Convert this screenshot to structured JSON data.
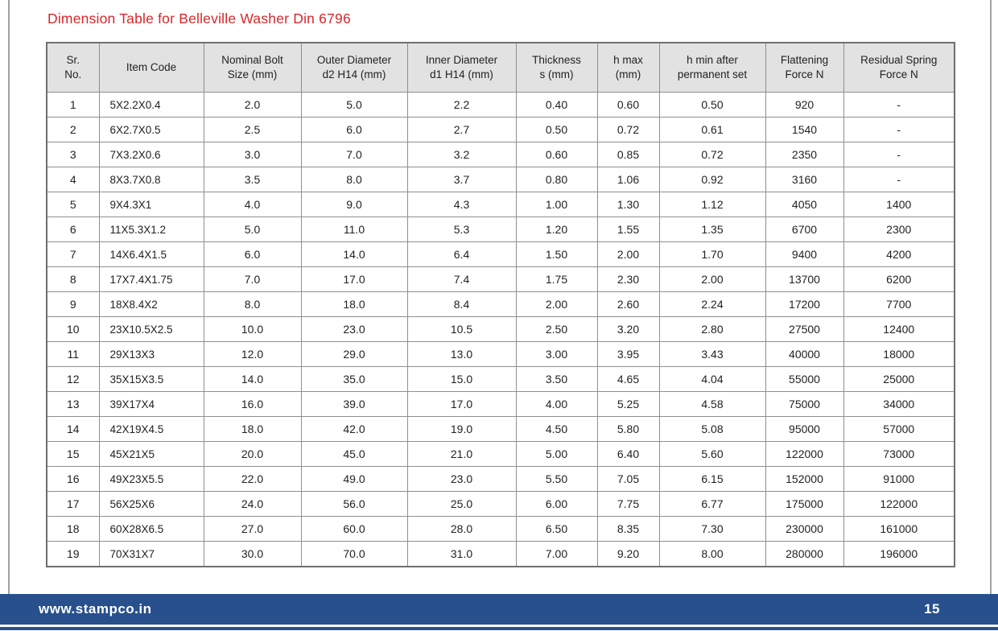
{
  "page": {
    "title": "Dimension Table for Belleville Washer Din 6796",
    "title_color": "#d9262a"
  },
  "table": {
    "column_keys": [
      "sr_no",
      "item_code",
      "nominal_bolt_size",
      "outer_diameter_d2",
      "inner_diameter_d1",
      "thickness_s",
      "h_max",
      "h_min_after_set",
      "flattening_force",
      "residual_spring_force"
    ],
    "columns": [
      "Sr.\nNo.",
      "Item Code",
      "Nominal Bolt\nSize (mm)",
      "Outer Diameter\nd2 H14 (mm)",
      "Inner Diameter\nd1 H14 (mm)",
      "Thickness\ns (mm)",
      "h max\n(mm)",
      "h min after\npermanent set",
      "Flattening\nForce N",
      "Residual Spring\nForce N"
    ],
    "rows": [
      [
        "1",
        "5X2.2X0.4",
        "2.0",
        "5.0",
        "2.2",
        "0.40",
        "0.60",
        "0.50",
        "920",
        "-"
      ],
      [
        "2",
        "6X2.7X0.5",
        "2.5",
        "6.0",
        "2.7",
        "0.50",
        "0.72",
        "0.61",
        "1540",
        "-"
      ],
      [
        "3",
        "7X3.2X0.6",
        "3.0",
        "7.0",
        "3.2",
        "0.60",
        "0.85",
        "0.72",
        "2350",
        "-"
      ],
      [
        "4",
        "8X3.7X0.8",
        "3.5",
        "8.0",
        "3.7",
        "0.80",
        "1.06",
        "0.92",
        "3160",
        "-"
      ],
      [
        "5",
        "9X4.3X1",
        "4.0",
        "9.0",
        "4.3",
        "1.00",
        "1.30",
        "1.12",
        "4050",
        "1400"
      ],
      [
        "6",
        "11X5.3X1.2",
        "5.0",
        "11.0",
        "5.3",
        "1.20",
        "1.55",
        "1.35",
        "6700",
        "2300"
      ],
      [
        "7",
        "14X6.4X1.5",
        "6.0",
        "14.0",
        "6.4",
        "1.50",
        "2.00",
        "1.70",
        "9400",
        "4200"
      ],
      [
        "8",
        "17X7.4X1.75",
        "7.0",
        "17.0",
        "7.4",
        "1.75",
        "2.30",
        "2.00",
        "13700",
        "6200"
      ],
      [
        "9",
        "18X8.4X2",
        "8.0",
        "18.0",
        "8.4",
        "2.00",
        "2.60",
        "2.24",
        "17200",
        "7700"
      ],
      [
        "10",
        "23X10.5X2.5",
        "10.0",
        "23.0",
        "10.5",
        "2.50",
        "3.20",
        "2.80",
        "27500",
        "12400"
      ],
      [
        "11",
        "29X13X3",
        "12.0",
        "29.0",
        "13.0",
        "3.00",
        "3.95",
        "3.43",
        "40000",
        "18000"
      ],
      [
        "12",
        "35X15X3.5",
        "14.0",
        "35.0",
        "15.0",
        "3.50",
        "4.65",
        "4.04",
        "55000",
        "25000"
      ],
      [
        "13",
        "39X17X4",
        "16.0",
        "39.0",
        "17.0",
        "4.00",
        "5.25",
        "4.58",
        "75000",
        "34000"
      ],
      [
        "14",
        "42X19X4.5",
        "18.0",
        "42.0",
        "19.0",
        "4.50",
        "5.80",
        "5.08",
        "95000",
        "57000"
      ],
      [
        "15",
        "45X21X5",
        "20.0",
        "45.0",
        "21.0",
        "5.00",
        "6.40",
        "5.60",
        "122000",
        "73000"
      ],
      [
        "16",
        "49X23X5.5",
        "22.0",
        "49.0",
        "23.0",
        "5.50",
        "7.05",
        "6.15",
        "152000",
        "91000"
      ],
      [
        "17",
        "56X25X6",
        "24.0",
        "56.0",
        "25.0",
        "6.00",
        "7.75",
        "6.77",
        "175000",
        "122000"
      ],
      [
        "18",
        "60X28X6.5",
        "27.0",
        "60.0",
        "28.0",
        "6.50",
        "8.35",
        "7.30",
        "230000",
        "161000"
      ],
      [
        "19",
        "70X31X7",
        "30.0",
        "70.0",
        "31.0",
        "7.00",
        "9.20",
        "8.00",
        "280000",
        "196000"
      ]
    ]
  },
  "footer": {
    "website": "www.stampco.in",
    "page_number": "15",
    "bar_color": "#27508c"
  }
}
